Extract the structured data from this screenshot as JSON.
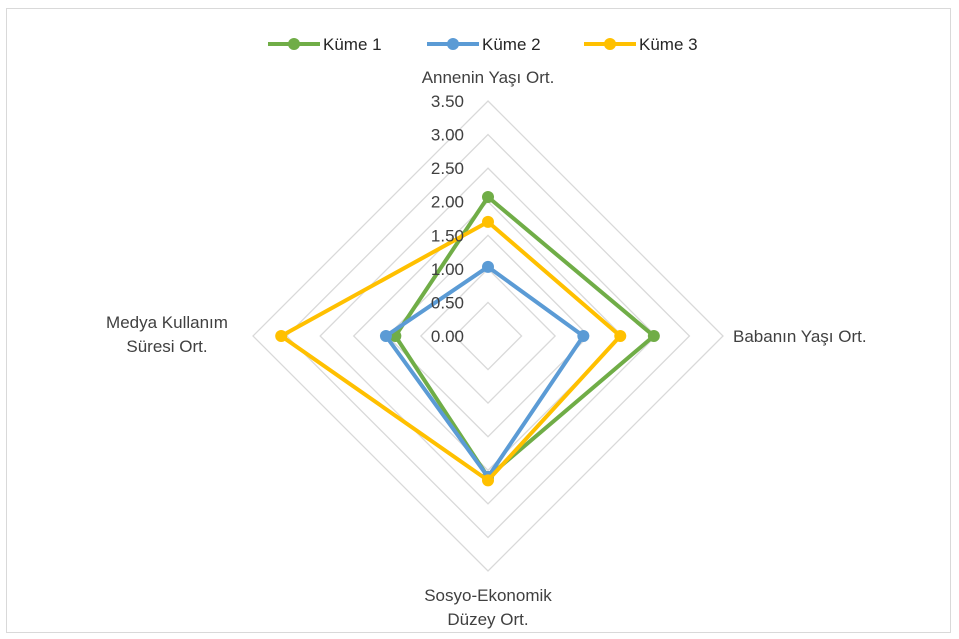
{
  "chart_data": {
    "type": "radar",
    "axes": [
      "Annenin Yaşı Ort.",
      "Babanın Yaşı Ort.",
      "Sosyo-Ekonomik Düzey Ort.",
      "Medya Kullanım Süresi Ort."
    ],
    "axis_label_lines": [
      [
        "Annenin Yaşı Ort."
      ],
      [
        "Babanın Yaşı Ort."
      ],
      [
        "Sosyo-Ekonomik",
        "Düzey Ort."
      ],
      [
        "Medya Kullanım",
        "Süresi Ort."
      ]
    ],
    "ticks": [
      "0.00",
      "0.50",
      "1.00",
      "1.50",
      "2.00",
      "2.50",
      "3.00",
      "3.50"
    ],
    "tick_values": [
      0,
      0.5,
      1,
      1.5,
      2,
      2.5,
      3,
      3.5
    ],
    "rmax": 3.5,
    "grid": true,
    "legend_position": "top",
    "series": [
      {
        "name": "Küme 1",
        "color": "#70ad47",
        "values": [
          2.07,
          2.47,
          2.1,
          1.38
        ]
      },
      {
        "name": "Küme 2",
        "color": "#5b9bd5",
        "values": [
          1.03,
          1.42,
          2.1,
          1.52
        ]
      },
      {
        "name": "Küme 3",
        "color": "#ffc000",
        "values": [
          1.7,
          1.97,
          2.15,
          3.08
        ]
      }
    ]
  }
}
